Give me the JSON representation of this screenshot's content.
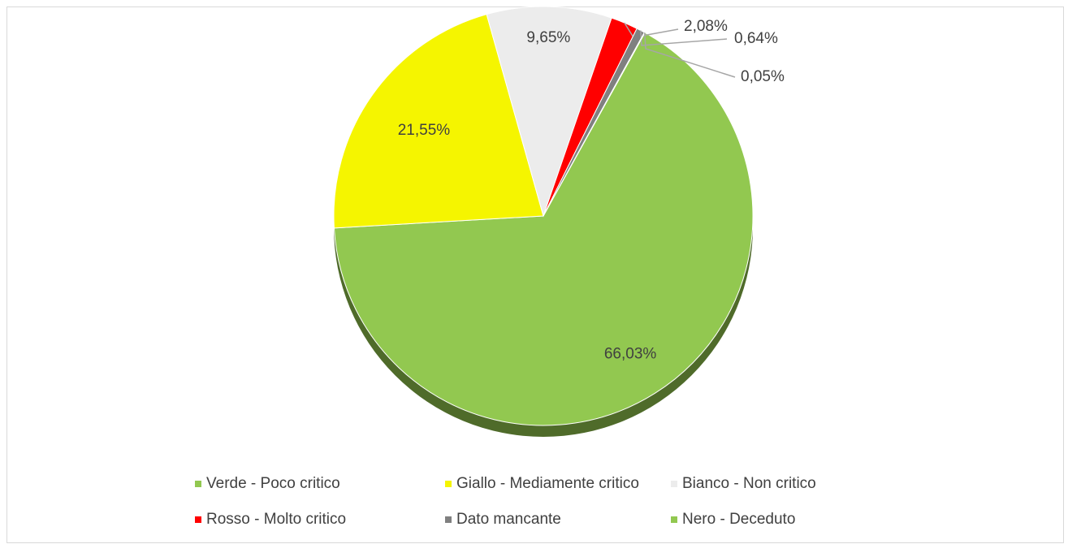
{
  "chart_data": {
    "type": "pie",
    "categories": [
      "Verde - Poco critico",
      "Giallo - Mediamente critico",
      "Bianco - Non critico",
      "Rosso - Molto critico",
      "Dato mancante",
      "Nero - Deceduto"
    ],
    "values": [
      66.03,
      21.55,
      9.65,
      2.08,
      0.64,
      0.05
    ],
    "value_labels": [
      "66,03%",
      "21,55%",
      "9,65%",
      "2,08%",
      "0,64%",
      "0,05%"
    ],
    "colors": [
      "#92c850",
      "#f5f500",
      "#ececec",
      "#ff0000",
      "#808080",
      "#92c850"
    ],
    "legend": "bottom"
  }
}
